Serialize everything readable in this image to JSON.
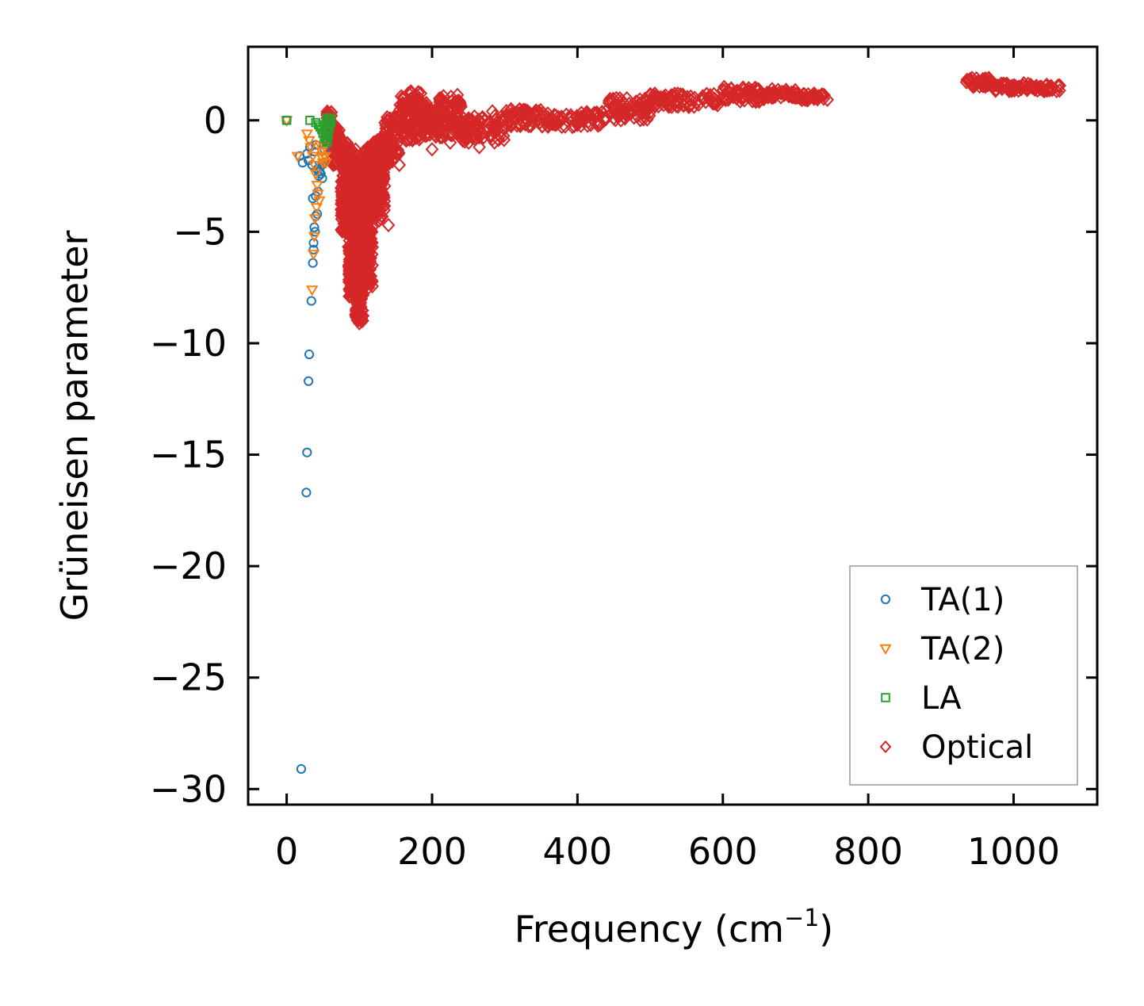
{
  "chart_data": {
    "type": "scatter",
    "title": "",
    "xlabel": "Frequency (cm",
    "xlabel_sup": "−1",
    "xlabel_tail": ")",
    "ylabel": "Grüneisen parameter",
    "xlim": [
      -53,
      1115
    ],
    "ylim": [
      -30.7,
      3.3
    ],
    "xticks": [
      {
        "value": 0,
        "label": "0"
      },
      {
        "value": 200,
        "label": "200"
      },
      {
        "value": 400,
        "label": "400"
      },
      {
        "value": 600,
        "label": "600"
      },
      {
        "value": 800,
        "label": "800"
      },
      {
        "value": 1000,
        "label": "1000"
      }
    ],
    "yticks": [
      {
        "value": 0,
        "label": "0"
      },
      {
        "value": -5,
        "label": "−5"
      },
      {
        "value": -10,
        "label": "−10"
      },
      {
        "value": -15,
        "label": "−15"
      },
      {
        "value": -20,
        "label": "−20"
      },
      {
        "value": -25,
        "label": "−25"
      },
      {
        "value": -30,
        "label": "−30"
      }
    ],
    "grid": false,
    "legend_position": "bottom-right",
    "series": [
      {
        "name": "TA(1)",
        "marker": "circle",
        "color": "#1f77b4",
        "points": [
          [
            0,
            0
          ],
          [
            18,
            -1.6
          ],
          [
            22,
            -1.9
          ],
          [
            28,
            -1.5
          ],
          [
            30,
            -1.8
          ],
          [
            32,
            -1.2
          ],
          [
            35,
            -2.0
          ],
          [
            38,
            -1.4
          ],
          [
            40,
            -1.1
          ],
          [
            42,
            -2.2
          ],
          [
            44,
            -2.5
          ],
          [
            45,
            -2.3
          ],
          [
            46,
            -2.1
          ],
          [
            47,
            -2.4
          ],
          [
            48,
            -2.0
          ],
          [
            49,
            -2.6
          ],
          [
            50,
            -1.9
          ],
          [
            50,
            -0.6
          ],
          [
            52,
            -1.3
          ],
          [
            52,
            -0.9
          ],
          [
            36,
            -3.5
          ],
          [
            40,
            -3.4
          ],
          [
            43,
            -3.2
          ],
          [
            40,
            -4.3
          ],
          [
            42,
            -4.2
          ],
          [
            38,
            -4.8
          ],
          [
            39,
            -5.0
          ],
          [
            37,
            -5.5
          ],
          [
            37,
            -5.8
          ],
          [
            36,
            -6.4
          ],
          [
            34,
            -8.1
          ],
          [
            31,
            -10.5
          ],
          [
            30,
            -11.7
          ],
          [
            28,
            -14.9
          ],
          [
            27,
            -16.7
          ],
          [
            20,
            -29.1
          ]
        ]
      },
      {
        "name": "TA(2)",
        "marker": "triangle-down",
        "color": "#ff7f0e",
        "points": [
          [
            0,
            0
          ],
          [
            15,
            -1.6
          ],
          [
            28,
            -0.6
          ],
          [
            31,
            -0.9
          ],
          [
            33,
            -1.2
          ],
          [
            36,
            -1.6
          ],
          [
            38,
            -2.0
          ],
          [
            40,
            -2.4
          ],
          [
            42,
            -2.9
          ],
          [
            43,
            -3.3
          ],
          [
            45,
            -3.6
          ],
          [
            41,
            -3.9
          ],
          [
            39,
            -4.4
          ],
          [
            38,
            -5.2
          ],
          [
            37,
            -6.0
          ],
          [
            35,
            -7.6
          ],
          [
            46,
            -1.1
          ],
          [
            48,
            -1.4
          ],
          [
            49,
            -1.7
          ],
          [
            50,
            -1.9
          ],
          [
            51,
            -0.8
          ],
          [
            52,
            -1.2
          ],
          [
            53,
            -1.6
          ],
          [
            54,
            -1.9
          ]
        ]
      },
      {
        "name": "LA",
        "marker": "square",
        "color": "#2ca02c",
        "points": [
          [
            0,
            0
          ],
          [
            32,
            0
          ],
          [
            40,
            -0.1
          ],
          [
            44,
            -0.2
          ],
          [
            46,
            -0.3
          ],
          [
            48,
            -0.4
          ],
          [
            50,
            -0.6
          ],
          [
            52,
            -0.2
          ],
          [
            53,
            -0.8
          ],
          [
            54,
            -0.4
          ],
          [
            55,
            -1.0
          ],
          [
            55,
            0.1
          ],
          [
            56,
            -0.5
          ],
          [
            56,
            -0.9
          ],
          [
            57,
            -0.1
          ],
          [
            57,
            -0.7
          ],
          [
            58,
            0.1
          ],
          [
            58,
            -0.4
          ],
          [
            59,
            0
          ],
          [
            59,
            -0.2
          ],
          [
            60,
            0.1
          ],
          [
            61,
            -0.1
          ]
        ]
      },
      {
        "name": "Optical",
        "marker": "diamond",
        "color": "#d62728",
        "bands": [
          {
            "x": [
              55,
              62
            ],
            "y": [
              -1.0,
              0.4
            ]
          },
          {
            "x": [
              62,
              75
            ],
            "y": [
              -2.0,
              -0.3
            ]
          },
          {
            "x": [
              75,
              85
            ],
            "y": [
              -5.0,
              -1.0
            ]
          },
          {
            "x": [
              85,
              95
            ],
            "y": [
              -8.0,
              -1.2
            ]
          },
          {
            "x": [
              95,
              105
            ],
            "y": [
              -9.0,
              -1.5
            ]
          },
          {
            "x": [
              105,
              118
            ],
            "y": [
              -7.5,
              -1.2
            ]
          },
          {
            "x": [
              118,
              135
            ],
            "y": [
              -4.5,
              -0.8
            ]
          },
          {
            "x": [
              135,
              155
            ],
            "y": [
              -2.0,
              0.2
            ]
          },
          {
            "x": [
              155,
              185
            ],
            "y": [
              -1.0,
              1.3
            ]
          },
          {
            "x": [
              185,
              210
            ],
            "y": [
              -0.8,
              0.8
            ]
          },
          {
            "x": [
              210,
              240
            ],
            "y": [
              -0.8,
              1.2
            ]
          },
          {
            "x": [
              240,
              300
            ],
            "y": [
              -1.0,
              0.2
            ]
          },
          {
            "x": [
              300,
              350
            ],
            "y": [
              -0.3,
              0.5
            ]
          },
          {
            "x": [
              350,
              440
            ],
            "y": [
              -0.3,
              0.4
            ]
          },
          {
            "x": [
              440,
              500
            ],
            "y": [
              0.0,
              1.0
            ]
          },
          {
            "x": [
              500,
              600
            ],
            "y": [
              0.6,
              1.2
            ]
          },
          {
            "x": [
              600,
              660
            ],
            "y": [
              0.8,
              1.5
            ]
          },
          {
            "x": [
              660,
              700
            ],
            "y": [
              1.0,
              1.4
            ]
          },
          {
            "x": [
              700,
              745
            ],
            "y": [
              0.9,
              1.2
            ]
          },
          {
            "x": [
              935,
              975
            ],
            "y": [
              1.5,
              1.9
            ]
          },
          {
            "x": [
              975,
              1020
            ],
            "y": [
              1.3,
              1.7
            ]
          },
          {
            "x": [
              1020,
              1065
            ],
            "y": [
              1.3,
              1.6
            ]
          }
        ],
        "outliers": [
          [
            100,
            -9.1
          ],
          [
            95,
            -8.7
          ],
          [
            140,
            -4.7
          ],
          [
            123,
            -4.2
          ],
          [
            155,
            -2.0
          ],
          [
            80,
            -2.2
          ],
          [
            70,
            -1.6
          ],
          [
            265,
            -1.2
          ],
          [
            200,
            -1.3
          ],
          [
            225,
            -1.0
          ],
          [
            283,
            0.4
          ]
        ]
      }
    ]
  }
}
